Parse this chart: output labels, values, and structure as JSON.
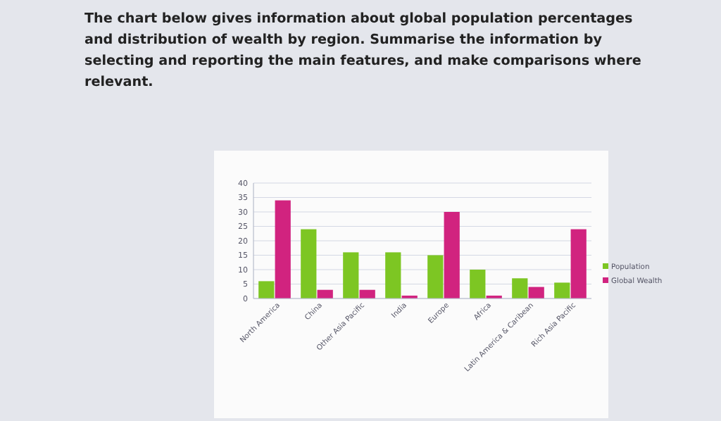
{
  "chart_data": {
    "type": "bar",
    "title": "The chart below gives information about global population percentages and distribution of wealth by region. Summarise the information by selecting and reporting the main features, and make comparisons where relevant.",
    "categories": [
      "North America",
      "China",
      "Other Asia Pacific",
      "India",
      "Europe",
      "Africa",
      "Latin America & Caribean",
      "Rich Asia Pacific"
    ],
    "series": [
      {
        "name": "Population",
        "color": "#7dc623",
        "values": [
          6,
          24,
          16,
          16,
          15,
          10,
          7,
          5.5
        ]
      },
      {
        "name": "Global Wealth",
        "color": "#d1237f",
        "values": [
          34,
          3,
          3,
          1,
          30,
          1,
          4,
          24
        ]
      }
    ],
    "ylim": [
      0,
      40
    ],
    "yticks": [
      0,
      5,
      10,
      15,
      20,
      25,
      30,
      35,
      40
    ],
    "grid": "y",
    "legend": "right"
  }
}
